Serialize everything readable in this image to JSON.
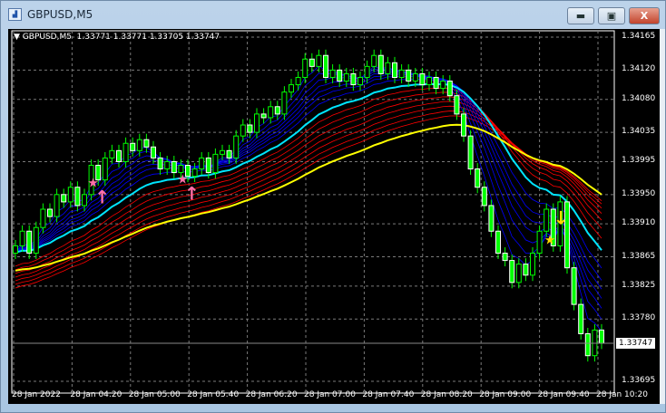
{
  "window": {
    "title": "GBPUSD,M5",
    "buttons": {
      "minimize": "▬",
      "maximize": "▣",
      "close": "X"
    }
  },
  "chart_info": {
    "text": "GBPUSD,M5  1.33771 1.33771 1.33705 1.33747"
  },
  "colors": {
    "bull": "#00ff00",
    "bear": "#ffffff",
    "fast_ma": "#0000ff",
    "slow_ma": "#ff0000",
    "cyan_ma": "#00e5ff",
    "yellow_ma": "#ffff00",
    "buy_signal": "#ff6fa8",
    "sell_signal": "#ffd700",
    "grid": "#7a7a7a"
  },
  "chart_data": {
    "type": "candlestick",
    "symbol": "GBPUSD",
    "timeframe": "M5",
    "ylim": [
      1.33695,
      1.34165
    ],
    "price_ticks": [
      "1.34165",
      "1.34120",
      "1.34080",
      "1.34035",
      "1.33995",
      "1.33950",
      "1.33910",
      "1.33865",
      "1.33825",
      "1.33780",
      "1.33695"
    ],
    "time_ticks": [
      "28 Jan 2022",
      "28 Jan 04:20",
      "28 Jan 05:00",
      "28 Jan 05:40",
      "28 Jan 06:20",
      "28 Jan 07:00",
      "28 Jan 07:40",
      "28 Jan 08:20",
      "28 Jan 09:00",
      "28 Jan 09:40",
      "28 Jan 10:20"
    ],
    "current_price": "1.33747",
    "closes": [
      1.3388,
      1.339,
      1.3387,
      1.33905,
      1.3393,
      1.3392,
      1.3395,
      1.3394,
      1.3396,
      1.33935,
      1.3395,
      1.3399,
      1.3397,
      1.34,
      1.3401,
      1.33995,
      1.3402,
      1.3401,
      1.34025,
      1.34015,
      1.34,
      1.33985,
      1.33995,
      1.3398,
      1.3399,
      1.33975,
      1.33985,
      1.34,
      1.3398,
      1.34005,
      1.3401,
      1.34,
      1.3403,
      1.34045,
      1.34035,
      1.3406,
      1.34055,
      1.3407,
      1.3406,
      1.3409,
      1.341,
      1.3411,
      1.34135,
      1.34125,
      1.3414,
      1.3411,
      1.3412,
      1.34105,
      1.34115,
      1.341,
      1.3411,
      1.34125,
      1.3414,
      1.34115,
      1.3413,
      1.3411,
      1.3412,
      1.34105,
      1.34115,
      1.341,
      1.3411,
      1.34095,
      1.34105,
      1.34085,
      1.3406,
      1.3403,
      1.33985,
      1.3396,
      1.33935,
      1.339,
      1.3387,
      1.3386,
      1.3383,
      1.33855,
      1.3384,
      1.3387,
      1.339,
      1.3393,
      1.3388,
      1.3394,
      1.3385,
      1.338,
      1.3376,
      1.3373,
      1.33765,
      1.33747
    ],
    "signals": [
      {
        "type": "buy",
        "bar": 12
      },
      {
        "type": "buy",
        "bar": 25
      },
      {
        "type": "sell",
        "bar": 78
      }
    ],
    "grid": true
  }
}
